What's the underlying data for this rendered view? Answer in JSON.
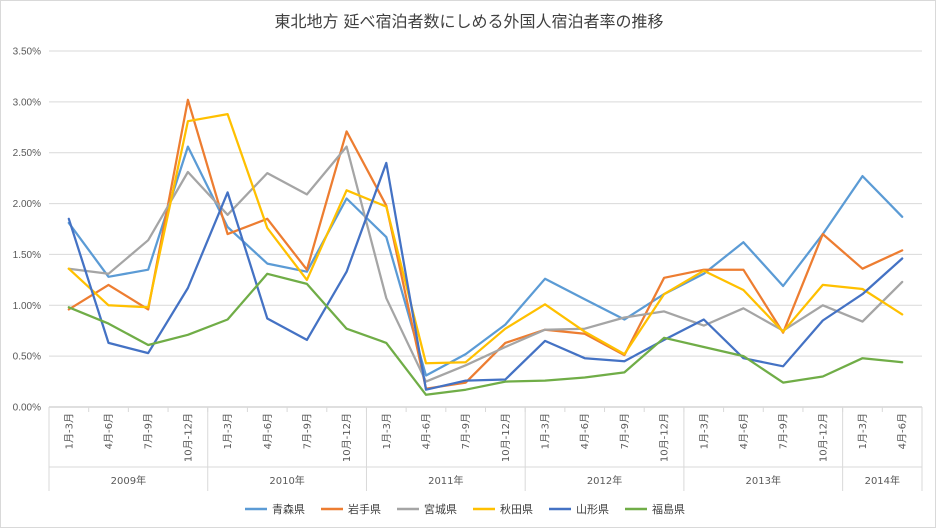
{
  "chart_data": {
    "type": "line",
    "title": "東北地方 延べ宿泊者数にしめる外国人宿泊者率の推移",
    "xlabel": "",
    "ylabel": "",
    "ylim": [
      0,
      3.5
    ],
    "y_ticks": [
      "0.00%",
      "0.50%",
      "1.00%",
      "1.50%",
      "2.00%",
      "2.50%",
      "3.00%",
      "3.50%"
    ],
    "y_unit": "%",
    "grid": true,
    "legend_position": "bottom",
    "categories": [
      "1月-3月",
      "4月-6月",
      "7月-9月",
      "10月-12月",
      "1月-3月",
      "4月-6月",
      "7月-9月",
      "10月-12月",
      "1月-3月",
      "4月-6月",
      "7月-9月",
      "10月-12月",
      "1月-3月",
      "4月-6月",
      "7月-9月",
      "10月-12月",
      "1月-3月",
      "4月-6月",
      "7月-9月",
      "10月-12月",
      "1月-3月",
      "4月-6月"
    ],
    "groups": [
      {
        "label": "2009年",
        "count": 4
      },
      {
        "label": "2010年",
        "count": 4
      },
      {
        "label": "2011年",
        "count": 4
      },
      {
        "label": "2012年",
        "count": 4
      },
      {
        "label": "2013年",
        "count": 4
      },
      {
        "label": "2014年",
        "count": 2
      }
    ],
    "series": [
      {
        "name": "青森県",
        "color": "#5B9BD5",
        "values": [
          1.81,
          1.28,
          1.35,
          2.56,
          1.77,
          1.41,
          1.33,
          2.05,
          1.67,
          0.31,
          0.52,
          0.81,
          1.26,
          1.06,
          0.86,
          1.11,
          1.31,
          1.62,
          1.19,
          1.7,
          2.27,
          1.87
        ]
      },
      {
        "name": "岩手県",
        "color": "#ED7D31",
        "values": [
          0.96,
          1.2,
          0.96,
          3.02,
          1.7,
          1.85,
          1.35,
          2.71,
          1.98,
          0.18,
          0.24,
          0.63,
          0.76,
          0.72,
          0.51,
          1.27,
          1.35,
          1.35,
          0.73,
          1.7,
          1.36,
          1.54
        ]
      },
      {
        "name": "宮城県",
        "color": "#A5A5A5",
        "values": [
          1.36,
          1.31,
          1.64,
          2.31,
          1.89,
          2.3,
          2.09,
          2.56,
          1.07,
          0.25,
          0.41,
          0.59,
          0.76,
          0.77,
          0.88,
          0.94,
          0.8,
          0.97,
          0.75,
          1.0,
          0.84,
          1.23
        ]
      },
      {
        "name": "秋田県",
        "color": "#FFC000",
        "values": [
          1.36,
          1.0,
          0.98,
          2.81,
          2.88,
          1.76,
          1.25,
          2.13,
          1.97,
          0.43,
          0.44,
          0.77,
          1.01,
          0.74,
          0.52,
          1.11,
          1.34,
          1.15,
          0.74,
          1.2,
          1.16,
          0.91
        ]
      },
      {
        "name": "山形県",
        "color": "#4472C4",
        "values": [
          1.85,
          0.63,
          0.53,
          1.17,
          2.11,
          0.87,
          0.66,
          1.33,
          2.4,
          0.17,
          0.26,
          0.27,
          0.65,
          0.48,
          0.45,
          0.66,
          0.86,
          0.48,
          0.4,
          0.85,
          1.11,
          1.46
        ]
      },
      {
        "name": "福島県",
        "color": "#70AD47",
        "values": [
          0.98,
          0.82,
          0.61,
          0.71,
          0.86,
          1.31,
          1.21,
          0.77,
          0.63,
          0.12,
          0.17,
          0.25,
          0.26,
          0.29,
          0.34,
          0.68,
          0.59,
          0.5,
          0.24,
          0.3,
          0.48,
          0.44
        ]
      }
    ]
  }
}
